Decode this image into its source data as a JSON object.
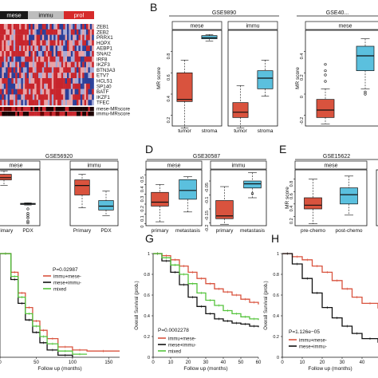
{
  "colors": {
    "red": "#d9533e",
    "blue": "#5bc0de",
    "green": "#55c43c",
    "black": "#111111",
    "hm_red": "#c8252c",
    "hm_blue": "#2b3f99",
    "mese_bar": "#1a1a1a",
    "immu_bar": "#bdbdbd",
    "prol_bar": "#d62a2a"
  },
  "heatmap": {
    "groups": [
      "mese",
      "immu",
      "prol"
    ],
    "genes": [
      "ZEB1",
      "ZEB2",
      "PRRX1",
      "HOPX",
      "AEBP1",
      "SNAI2",
      "IRF8",
      "IKZF3",
      "BTN3A3",
      "ETV7",
      "HCLS1",
      "SP140",
      "BATF",
      "IKZF1",
      "TFEC"
    ],
    "score_rows": [
      "mese-MRscore",
      "immu-MRscore"
    ]
  },
  "panel_labels": {
    "b": "B",
    "d": "D",
    "e": "E",
    "g": "G",
    "h": "H"
  },
  "chart_data": [
    {
      "id": "B",
      "type": "box",
      "dataset": "GSE9890",
      "ylabel": "MR score",
      "subplots": [
        {
          "name": "mese",
          "yticks": [
            0.2,
            0.4,
            0.6,
            0.8
          ],
          "ylim": [
            0.1,
            1.0
          ],
          "categories": [
            "tumor",
            "stroma"
          ],
          "boxes": [
            {
              "q1": 0.33,
              "median": 0.35,
              "q3": 0.6,
              "min": 0.08,
              "max": 0.72,
              "color": "red"
            },
            {
              "q1": 0.92,
              "median": 0.93,
              "q3": 0.95,
              "min": 0.9,
              "max": 0.96,
              "color": "blue"
            }
          ]
        },
        {
          "name": "immu",
          "yticks": [],
          "ylim": [
            0.1,
            1.0
          ],
          "categories": [
            "tumor",
            "stroma"
          ],
          "boxes": [
            {
              "q1": 0.18,
              "median": 0.23,
              "q3": 0.32,
              "min": 0.08,
              "max": 0.48,
              "color": "red"
            },
            {
              "q1": 0.45,
              "median": 0.55,
              "q3": 0.62,
              "min": 0.38,
              "max": 0.72,
              "color": "blue"
            }
          ]
        }
      ]
    },
    {
      "id": "C",
      "type": "box",
      "dataset": "GSE40...",
      "ylabel": "MR score",
      "subplots": [
        {
          "name": "mese",
          "yticks": [
            -0.2,
            0.0,
            0.2,
            0.4
          ],
          "ylim": [
            -0.3,
            0.6
          ],
          "categories": [
            "",
            ""
          ],
          "boxes": [
            {
              "q1": -0.22,
              "median": -0.15,
              "q3": -0.05,
              "min": -0.28,
              "max": 0.05,
              "color": "red",
              "outliers": [
                0.22,
                0.28,
                0.12,
                0.18
              ]
            },
            {
              "q1": 0.22,
              "median": 0.36,
              "q3": 0.45,
              "min": 0.05,
              "max": 0.52,
              "color": "blue",
              "outliers": [
                0.0,
                0.02
              ]
            }
          ]
        }
      ]
    },
    {
      "id": "C2",
      "type": "box",
      "dataset": "GSE56920",
      "subplots": [
        {
          "name": "mese",
          "yticks": [],
          "ylim": [
            0,
            1
          ],
          "categories": [
            "Primary",
            "PDX"
          ],
          "boxes": [
            {
              "q1": 0.82,
              "median": 0.86,
              "q3": 0.92,
              "min": 0.72,
              "max": 0.98,
              "color": "red"
            },
            {
              "q1": 0.38,
              "median": 0.39,
              "q3": 0.4,
              "min": 0.37,
              "max": 0.41,
              "color": "blue",
              "outliers": [
                0.3,
                0.22,
                0.18,
                0.14,
                0.08,
                0.05
              ]
            }
          ]
        },
        {
          "name": "immu",
          "yticks": [],
          "ylim": [
            0,
            1
          ],
          "categories": [
            "Primary",
            "PDX"
          ],
          "boxes": [
            {
              "q1": 0.55,
              "median": 0.72,
              "q3": 0.82,
              "min": 0.32,
              "max": 0.92,
              "color": "red"
            },
            {
              "q1": 0.28,
              "median": 0.35,
              "q3": 0.45,
              "min": 0.18,
              "max": 0.62,
              "color": "blue"
            }
          ]
        }
      ]
    },
    {
      "id": "D",
      "type": "box",
      "dataset": "GSE30587",
      "subplots": [
        {
          "name": "mese",
          "yticks": [
            0.5,
            0.4,
            0.3,
            0.2,
            0.1,
            0.0
          ],
          "ylim": [
            -0.02,
            0.55
          ],
          "categories": [
            "primary",
            "metastasis"
          ],
          "boxes": [
            {
              "q1": 0.18,
              "median": 0.22,
              "q3": 0.32,
              "min": 0.02,
              "max": 0.4,
              "color": "red"
            },
            {
              "q1": 0.25,
              "median": 0.34,
              "q3": 0.45,
              "min": 0.12,
              "max": 0.48,
              "color": "blue"
            }
          ]
        },
        {
          "name": "immu",
          "yticks": [
            -0.05,
            -0.1,
            -0.15,
            -0.2
          ],
          "ylim": [
            -0.21,
            -0.01
          ],
          "categories": [
            "primary",
            "metastasis"
          ],
          "boxes": [
            {
              "q1": -0.185,
              "median": -0.175,
              "q3": -0.12,
              "min": -0.205,
              "max": -0.07,
              "color": "red"
            },
            {
              "q1": -0.075,
              "median": -0.06,
              "q3": -0.05,
              "min": -0.11,
              "max": -0.02,
              "color": "blue",
              "outliers": [
                -0.095
              ]
            }
          ]
        }
      ]
    },
    {
      "id": "E",
      "type": "box",
      "dataset": "GSE15622",
      "ylabel": "MR score",
      "subplots": [
        {
          "name": "mese",
          "yticks": [
            0.2,
            0.4,
            0.6,
            0.8
          ],
          "ylim": [
            0.05,
            0.95
          ],
          "categories": [
            "pre-chemo",
            "post-chemo"
          ],
          "boxes": [
            {
              "q1": 0.32,
              "median": 0.38,
              "q3": 0.5,
              "min": 0.08,
              "max": 0.8,
              "color": "red"
            },
            {
              "q1": 0.4,
              "median": 0.55,
              "q3": 0.66,
              "min": 0.22,
              "max": 0.85,
              "color": "blue"
            }
          ]
        },
        {
          "name": "",
          "yticks": [],
          "ylim": [
            0,
            1
          ],
          "categories": [
            "pre-ch"
          ],
          "boxes": [
            {
              "q1": 0.3,
              "median": 0.38,
              "q3": 0.48,
              "min": 0.15,
              "max": 0.6,
              "color": "red"
            }
          ]
        }
      ]
    },
    {
      "id": "F",
      "type": "line",
      "xlabel": "Follow up (months)",
      "xticks": [
        0,
        50,
        100,
        150
      ],
      "xlim": [
        0,
        165
      ],
      "annotation": "P=0.02987",
      "series": [
        {
          "name": "immu+mese-",
          "color": "red",
          "x": [
            0,
            15,
            25,
            35,
            45,
            55,
            65,
            80,
            100,
            120,
            165
          ],
          "y": [
            1,
            0.82,
            0.62,
            0.48,
            0.35,
            0.26,
            0.18,
            0.1,
            0.07,
            0.06,
            0.06
          ]
        },
        {
          "name": "mese+immu-",
          "color": "black",
          "x": [
            0,
            15,
            25,
            35,
            45,
            55,
            65,
            80,
            100
          ],
          "y": [
            1,
            0.75,
            0.52,
            0.36,
            0.24,
            0.14,
            0.07,
            0.02,
            0.0
          ]
        },
        {
          "name": "mixed",
          "color": "green",
          "x": [
            0,
            15,
            25,
            35,
            45,
            55,
            65,
            80,
            100,
            120
          ],
          "y": [
            1,
            0.78,
            0.58,
            0.42,
            0.3,
            0.2,
            0.13,
            0.06,
            0.03,
            0.03
          ]
        }
      ]
    },
    {
      "id": "G",
      "type": "line",
      "xlabel": "Follow up (months)",
      "ylabel": "Overall Survival (prob.)",
      "xticks": [
        0,
        10,
        20,
        30,
        40,
        50,
        60
      ],
      "xlim": [
        0,
        60
      ],
      "yticks": [
        0.0,
        0.2,
        0.4,
        0.6,
        0.8,
        1.0
      ],
      "ylim": [
        0,
        1
      ],
      "annotation": "P=0.0002278",
      "series": [
        {
          "name": "immu+mese-",
          "color": "red",
          "x": [
            0,
            5,
            10,
            15,
            20,
            25,
            30,
            35,
            40,
            45,
            50,
            55,
            60
          ],
          "y": [
            1,
            0.98,
            0.94,
            0.88,
            0.82,
            0.76,
            0.71,
            0.66,
            0.63,
            0.6,
            0.56,
            0.53,
            0.51
          ]
        },
        {
          "name": "mese+immu-",
          "color": "black",
          "x": [
            0,
            5,
            10,
            15,
            20,
            25,
            30,
            35,
            40,
            45,
            50,
            55,
            60
          ],
          "y": [
            1,
            0.93,
            0.82,
            0.7,
            0.58,
            0.49,
            0.42,
            0.37,
            0.35,
            0.33,
            0.32,
            0.3,
            0.29
          ]
        },
        {
          "name": "mixed",
          "color": "green",
          "x": [
            0,
            5,
            10,
            15,
            20,
            25,
            30,
            35,
            40,
            45,
            50,
            55,
            60
          ],
          "y": [
            1,
            0.96,
            0.89,
            0.8,
            0.71,
            0.62,
            0.55,
            0.5,
            0.45,
            0.42,
            0.39,
            0.37,
            0.36
          ]
        }
      ]
    },
    {
      "id": "H",
      "type": "line",
      "xlabel": "Follow up (months)",
      "ylabel": "Overall Survival (prob.)",
      "xticks": [
        0,
        10,
        20,
        30,
        40
      ],
      "xlim": [
        0,
        48
      ],
      "yticks": [
        0.0,
        0.2,
        0.4,
        0.6,
        0.8,
        1.0
      ],
      "ylim": [
        0,
        1
      ],
      "annotation": "P=1.126e−05",
      "series": [
        {
          "name": "immu+mese-",
          "color": "red",
          "x": [
            0,
            5,
            10,
            15,
            20,
            25,
            30,
            35,
            40,
            48
          ],
          "y": [
            1,
            0.97,
            0.94,
            0.88,
            0.82,
            0.74,
            0.66,
            0.58,
            0.52,
            0.47
          ]
        },
        {
          "name": "mese+immu-",
          "color": "black",
          "x": [
            0,
            5,
            10,
            15,
            20,
            25,
            30,
            35,
            40,
            48
          ],
          "y": [
            1,
            0.9,
            0.76,
            0.62,
            0.48,
            0.38,
            0.3,
            0.23,
            0.18,
            0.14
          ]
        }
      ]
    }
  ]
}
